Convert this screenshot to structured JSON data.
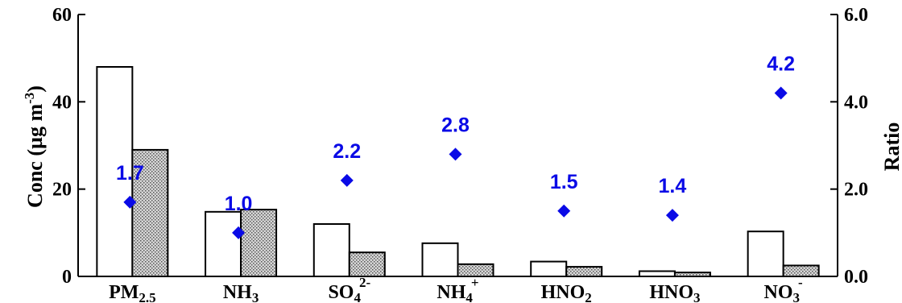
{
  "chart_data": {
    "type": "bar",
    "categories": [
      {
        "main": "PM",
        "sub": "2.5",
        "sup": ""
      },
      {
        "main": "NH",
        "sub": "3",
        "sup": ""
      },
      {
        "main": "SO",
        "sub": "4",
        "sup": "2-"
      },
      {
        "main": "NH",
        "sub": "4",
        "sup": "+"
      },
      {
        "main": "HNO",
        "sub": "2",
        "sup": ""
      },
      {
        "main": "HNO",
        "sub": "3",
        "sup": ""
      },
      {
        "main": "NO",
        "sub": "3",
        "sup": "-"
      }
    ],
    "series": [
      {
        "values": [
          48.0,
          14.8,
          12.0,
          7.6,
          3.4,
          1.2,
          10.3
        ],
        "fill": "#ffffff",
        "pattern": "none"
      },
      {
        "values": [
          29.0,
          15.3,
          5.5,
          2.8,
          2.2,
          0.9,
          2.5
        ],
        "fill": "#cccccc",
        "pattern": "dotted"
      }
    ],
    "ratio": {
      "values": [
        1.7,
        1.0,
        2.2,
        2.8,
        1.5,
        1.4,
        4.2
      ],
      "labels": [
        "1.7",
        "1.0",
        "2.2",
        "2.8",
        "1.5",
        "1.4",
        "4.2"
      ],
      "color": "#0a0ae6",
      "marker": "diamond"
    },
    "ylabel": "Conc (µg m-3)",
    "ylabel_parts": {
      "base": "Conc (µg m",
      "sup": "-3",
      "close": ")"
    },
    "y2label": "Ratio",
    "ylim": [
      0,
      60
    ],
    "y2lim": [
      0,
      6
    ],
    "yticks": [
      "0",
      "20",
      "40",
      "60"
    ],
    "y2ticks": [
      "0.0",
      "2.0",
      "4.0",
      "6.0"
    ],
    "grid": false,
    "legend": "none"
  }
}
